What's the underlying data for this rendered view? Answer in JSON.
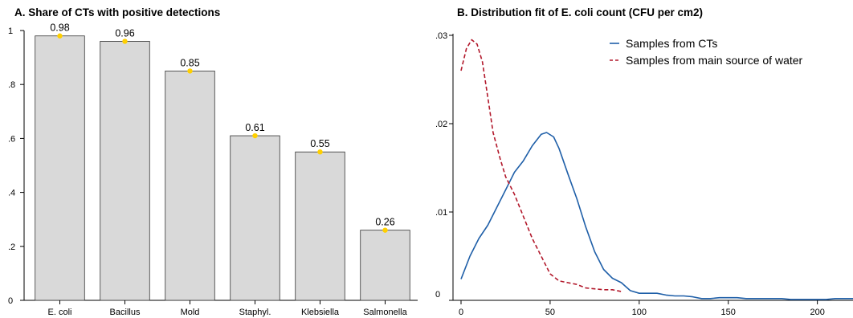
{
  "chart_data": [
    {
      "type": "bar",
      "title": "A. Share of CTs with positive detections",
      "categories": [
        "E. coli",
        "Bacillus",
        "Mold",
        "Staphyl.",
        "Klebsiella",
        "Salmonella"
      ],
      "values": [
        0.98,
        0.96,
        0.85,
        0.61,
        0.55,
        0.26
      ],
      "data_labels": [
        "0.98",
        "0.96",
        "0.85",
        "0.61",
        "0.55",
        "0.26"
      ],
      "ylim": [
        0,
        1
      ],
      "yticks": [
        0,
        0.2,
        0.4,
        0.6,
        0.8,
        1
      ],
      "ytick_labels": [
        "0",
        ".2",
        ".4",
        ".6",
        ".8",
        "1"
      ],
      "xlabel": "",
      "ylabel": "",
      "grid": false,
      "colors": {
        "bar_fill": "#d9d9d9",
        "bar_edge": "#333333",
        "marker": "#ffd000"
      }
    },
    {
      "type": "line",
      "title": "B. Distribution fit of E. coli count (CFU per cm2)",
      "xlabel": "",
      "ylabel": "",
      "xlim": [
        0,
        220
      ],
      "ylim": [
        0,
        0.03
      ],
      "xticks": [
        0,
        50,
        100,
        150,
        200
      ],
      "xtick_labels": [
        "0",
        "50",
        "100",
        "150",
        "200"
      ],
      "yticks": [
        0,
        0.01,
        0.02,
        0.03
      ],
      "ytick_labels": [
        "0",
        ".01",
        ".02",
        ".03"
      ],
      "grid": false,
      "legend_position": "top-right",
      "series": [
        {
          "name": "Samples from CTs",
          "color": "#1f5fa8",
          "dash": "solid",
          "x": [
            0,
            5,
            10,
            15,
            20,
            25,
            30,
            35,
            40,
            45,
            48,
            52,
            55,
            60,
            65,
            70,
            75,
            80,
            85,
            90,
            95,
            100,
            105,
            110,
            115,
            120,
            125,
            130,
            135,
            140,
            145,
            150,
            155,
            160,
            165,
            170,
            175,
            180,
            185,
            190,
            195,
            200,
            205,
            210,
            215,
            220
          ],
          "y": [
            0.0024,
            0.005,
            0.007,
            0.0085,
            0.0105,
            0.0125,
            0.0145,
            0.0158,
            0.0175,
            0.0188,
            0.019,
            0.0185,
            0.0172,
            0.0143,
            0.0115,
            0.0083,
            0.0055,
            0.0035,
            0.0025,
            0.002,
            0.0011,
            0.0008,
            0.0008,
            0.0008,
            0.0006,
            0.0005,
            0.0005,
            0.0004,
            0.0002,
            0.0002,
            0.0003,
            0.0003,
            0.0003,
            0.0002,
            0.0002,
            0.0002,
            0.0002,
            0.0002,
            0.0001,
            0.0001,
            0.0001,
            0.0001,
            0.0001,
            0.0002,
            0.0002,
            0.0002
          ]
        },
        {
          "name": "Samples from main source of water",
          "color": "#b2182b",
          "dash": "dashed",
          "x": [
            0,
            3,
            6,
            9,
            12,
            15,
            18,
            22,
            25,
            30,
            35,
            40,
            45,
            50,
            55,
            60,
            65,
            70,
            75,
            80,
            85,
            90
          ],
          "y": [
            0.026,
            0.0285,
            0.0295,
            0.029,
            0.027,
            0.023,
            0.019,
            0.016,
            0.014,
            0.012,
            0.0095,
            0.007,
            0.005,
            0.003,
            0.0022,
            0.002,
            0.0018,
            0.0014,
            0.0013,
            0.0012,
            0.0012,
            0.001
          ]
        }
      ]
    }
  ]
}
